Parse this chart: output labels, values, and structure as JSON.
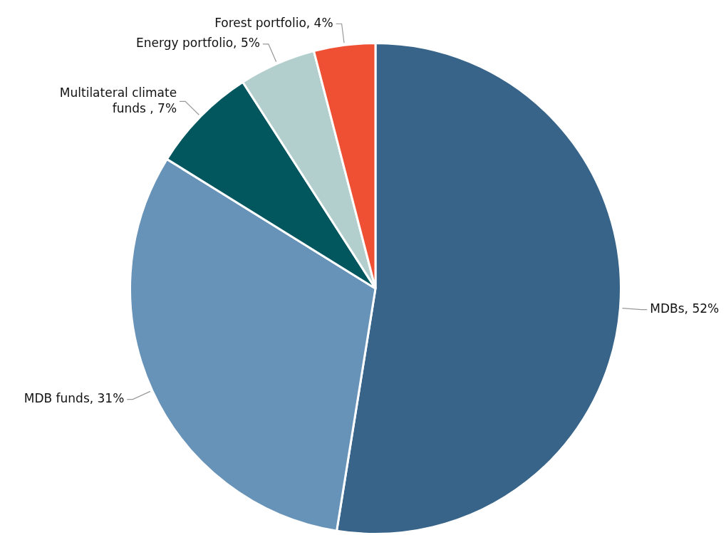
{
  "chart_data": {
    "type": "pie",
    "categories": [
      "MDBs, 52%",
      "MDB funds, 31%",
      "Multilateral climate funds , 7%",
      "Energy portfolio, 5%",
      "Forest portfolio, 4%"
    ],
    "values": [
      52,
      31,
      7,
      5,
      4
    ],
    "colors": [
      "#376488",
      "#6893b8",
      "#02575f",
      "#b3cfcd",
      "#ef5034"
    ],
    "legend": false
  }
}
